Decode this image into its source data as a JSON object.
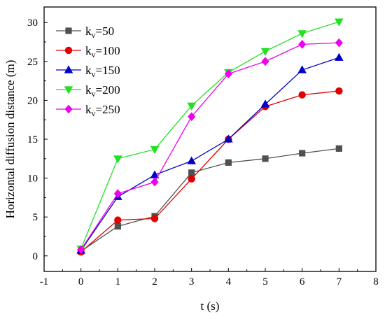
{
  "chart_data": {
    "type": "line",
    "title": "",
    "xlabel": "t (s)",
    "ylabel": "Horizontal diffusion distance (m)",
    "xlim": [
      -1,
      8
    ],
    "ylim": [
      -2,
      32
    ],
    "xticks": [
      -1,
      0,
      1,
      2,
      3,
      4,
      5,
      6,
      7,
      8
    ],
    "yticks": [
      0,
      5,
      10,
      15,
      20,
      25,
      30
    ],
    "grid": false,
    "legend": "top-left",
    "x": [
      0,
      1,
      2,
      3,
      4,
      5,
      6,
      7
    ],
    "series": [
      {
        "name": "kv=50",
        "base": "k",
        "sub": "v",
        "suffix": "=50",
        "color": "#505050",
        "marker": "square",
        "values": [
          0.6,
          3.8,
          5.1,
          10.7,
          12.0,
          12.5,
          13.2,
          13.8
        ]
      },
      {
        "name": "kv=100",
        "base": "k",
        "sub": "v",
        "suffix": "=100",
        "color": "#e00000",
        "marker": "circle",
        "values": [
          0.5,
          4.6,
          4.8,
          9.9,
          15.0,
          19.2,
          20.7,
          21.2
        ]
      },
      {
        "name": "kv=150",
        "base": "k",
        "sub": "v",
        "suffix": "=150",
        "color": "#0000c8",
        "marker": "triangle-up",
        "values": [
          0.7,
          7.6,
          10.4,
          12.2,
          15.0,
          19.5,
          23.9,
          25.5
        ]
      },
      {
        "name": "kv=200",
        "base": "k",
        "sub": "v",
        "suffix": "=200",
        "color": "#22e022",
        "marker": "triangle-down",
        "values": [
          0.9,
          12.5,
          13.7,
          19.3,
          23.6,
          26.3,
          28.6,
          30.1
        ]
      },
      {
        "name": "kv=250",
        "base": "k",
        "sub": "v",
        "suffix": "=250",
        "color": "#ee00ee",
        "marker": "diamond",
        "values": [
          0.8,
          8.0,
          9.5,
          17.9,
          23.4,
          25.0,
          27.2,
          27.4
        ]
      }
    ]
  }
}
